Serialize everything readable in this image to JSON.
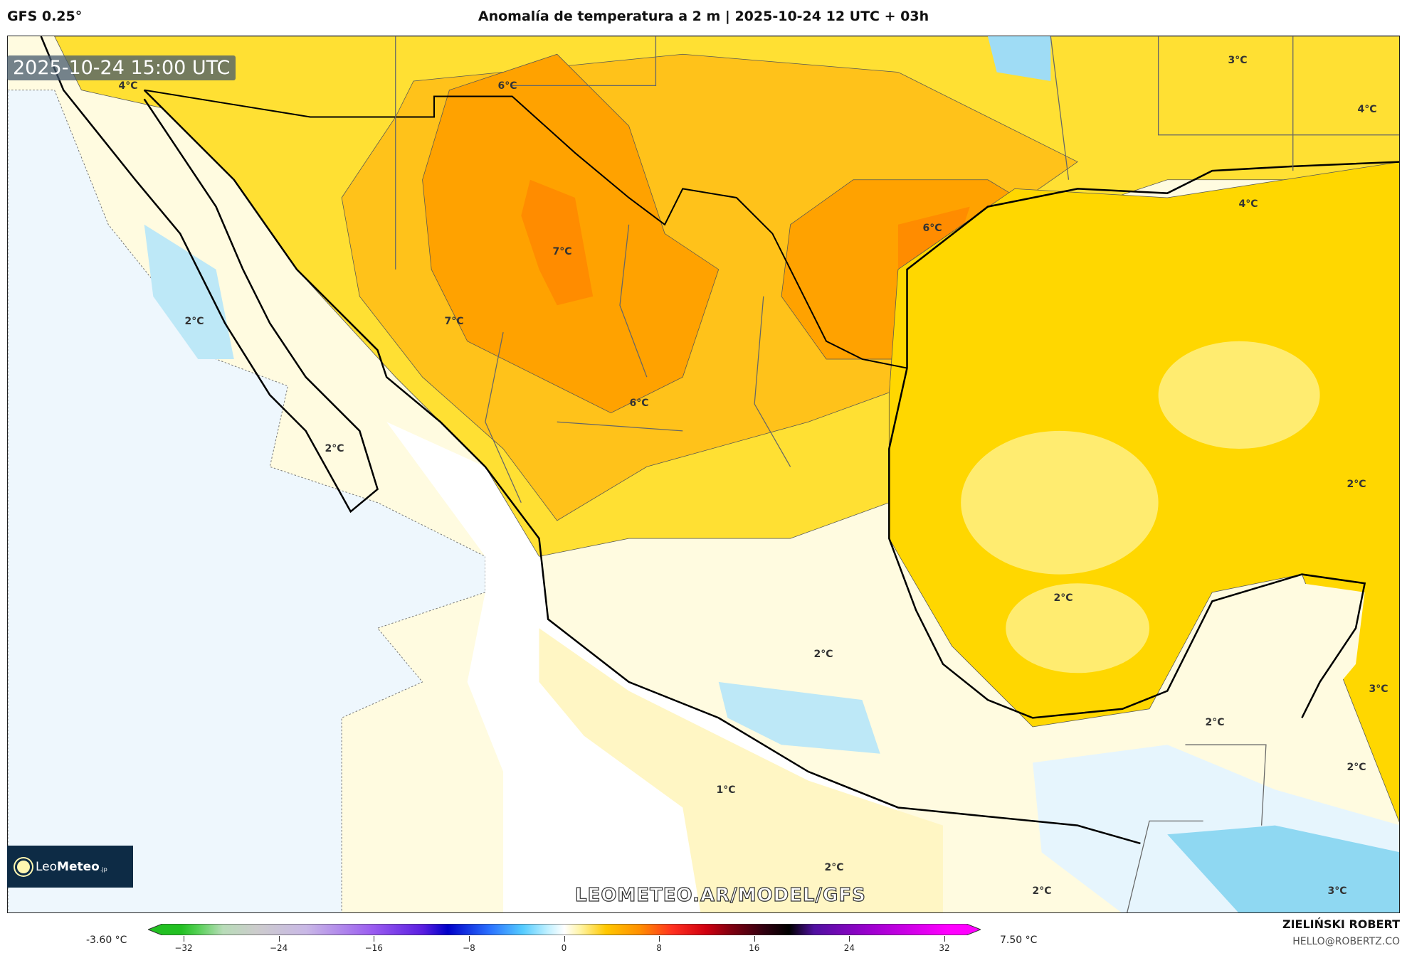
{
  "header": {
    "model": "GFS 0.25°",
    "title": "Anomalía de temperatura a 2 m | 2025-10-24 12 UTC + 03h"
  },
  "map": {
    "valid_time": "2025-10-24 15:00 UTC",
    "watermark": "LEOMETEO.AR/MODEL/GFS",
    "labels": [
      "4°C",
      "6°C",
      "3°C",
      "4°C",
      "7°C",
      "6°C",
      "4°C",
      "2°C",
      "7°C",
      "6°C",
      "2°C",
      "2°C",
      "2°C",
      "2°C",
      "3°C",
      "2°C",
      "2°C",
      "1°C",
      "2°C",
      "2°C",
      "3°C"
    ]
  },
  "logo": {
    "name_light": "Leo",
    "name_bold": "Meteo",
    "suffix": ".jp"
  },
  "colorbar": {
    "min_label": "-3.60 °C",
    "max_label": "7.50 °C",
    "ticks": [
      "−32",
      "−24",
      "−16",
      "−8",
      "0",
      "8",
      "16",
      "24",
      "32"
    ]
  },
  "credits": {
    "author": "ZIELIŃSKI ROBERT",
    "email": "HELLO@ROBERTZ.CO"
  }
}
